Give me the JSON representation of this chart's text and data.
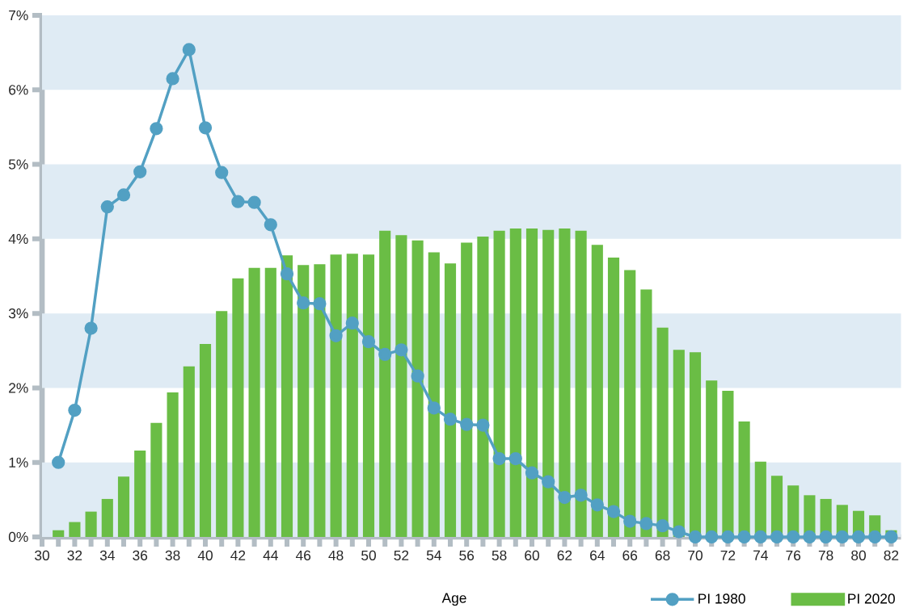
{
  "chart_data": {
    "type": "bar",
    "xlabel": "Age",
    "legend": "bottom right",
    "marker": "circle",
    "xlim": [
      30,
      82.6
    ],
    "xticks": [
      30,
      32,
      34,
      36,
      38,
      40,
      42,
      44,
      46,
      48,
      50,
      52,
      54,
      56,
      58,
      60,
      62,
      64,
      66,
      68,
      70,
      72,
      74,
      76,
      78,
      80,
      82
    ],
    "ylim": [
      0,
      7
    ],
    "yticks": [
      {
        "value": 0,
        "label": "0%"
      },
      {
        "value": 1,
        "label": "1%"
      },
      {
        "value": 2,
        "label": "2%"
      },
      {
        "value": 3,
        "label": "3%"
      },
      {
        "value": 4,
        "label": "4%"
      },
      {
        "value": 5,
        "label": "5%"
      },
      {
        "value": 6,
        "label": "6%"
      },
      {
        "value": 7,
        "label": "7%"
      }
    ],
    "bands": [
      {
        "axis": "y",
        "from": 0,
        "to": 1,
        "color": "#dfebf4"
      },
      {
        "axis": "y",
        "from": 2,
        "to": 3,
        "color": "#dfebf4"
      },
      {
        "axis": "y",
        "from": 4,
        "to": 5,
        "color": "#dfebf4"
      },
      {
        "axis": "y",
        "from": 6,
        "to": 7,
        "color": "#dfebf4"
      }
    ],
    "series": [
      {
        "name": "PI 1980",
        "type": "line",
        "color": "#52a0c3",
        "x": [
          31,
          32,
          33,
          34,
          35,
          36,
          37,
          38,
          39,
          40,
          41,
          42,
          43,
          44,
          45,
          46,
          47,
          48,
          49,
          50,
          51,
          52,
          53,
          54,
          55,
          56,
          57,
          58,
          59,
          60,
          61,
          62,
          63,
          64,
          65,
          66,
          67,
          68,
          69,
          70,
          71,
          72,
          73,
          74,
          75,
          76,
          77,
          78,
          79,
          80,
          81,
          82
        ],
        "values": [
          1.0,
          1.7,
          2.8,
          4.43,
          4.59,
          4.9,
          5.48,
          6.15,
          6.54,
          5.49,
          4.89,
          4.5,
          4.49,
          4.19,
          3.53,
          3.14,
          3.13,
          2.7,
          2.87,
          2.62,
          2.45,
          2.51,
          2.16,
          1.73,
          1.58,
          1.51,
          1.5,
          1.05,
          1.05,
          0.86,
          0.74,
          0.53,
          0.56,
          0.43,
          0.34,
          0.21,
          0.18,
          0.15,
          0.07,
          0,
          0,
          0,
          0,
          0,
          0,
          0,
          0,
          0,
          0,
          0,
          0,
          0
        ]
      },
      {
        "name": "PI 2020",
        "color": "#6abd45",
        "x": [
          31,
          32,
          33,
          34,
          35,
          36,
          37,
          38,
          39,
          40,
          41,
          42,
          43,
          44,
          45,
          46,
          47,
          48,
          49,
          50,
          51,
          52,
          53,
          54,
          55,
          56,
          57,
          58,
          59,
          60,
          61,
          62,
          63,
          64,
          65,
          66,
          67,
          68,
          69,
          70,
          71,
          72,
          73,
          74,
          75,
          76,
          77,
          78,
          79,
          80,
          81,
          82
        ],
        "values": [
          0.09,
          0.2,
          0.34,
          0.51,
          0.81,
          1.16,
          1.53,
          1.94,
          2.29,
          2.59,
          3.03,
          3.47,
          3.61,
          3.61,
          3.78,
          3.65,
          3.66,
          3.79,
          3.8,
          3.79,
          4.11,
          4.05,
          3.98,
          3.82,
          3.67,
          3.95,
          4.03,
          4.11,
          4.14,
          4.14,
          4.12,
          4.14,
          4.11,
          3.92,
          3.75,
          3.58,
          3.32,
          2.81,
          2.51,
          2.48,
          2.1,
          1.96,
          1.55,
          1.01,
          0.82,
          0.69,
          0.56,
          0.51,
          0.43,
          0.35,
          0.29,
          0.09
        ]
      }
    ]
  }
}
